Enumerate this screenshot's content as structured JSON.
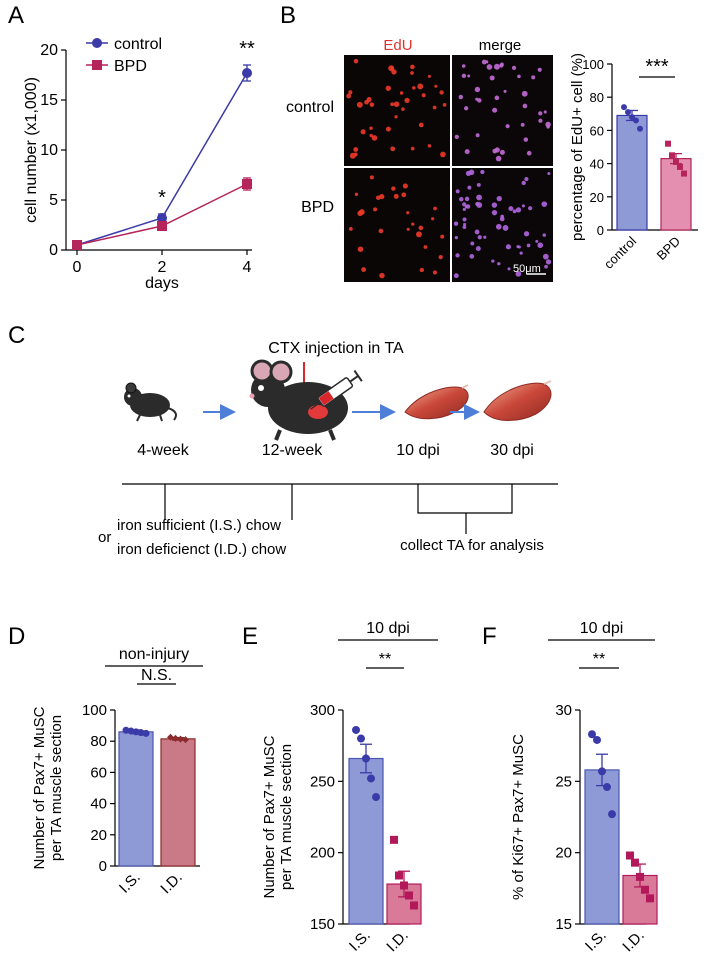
{
  "panel_labels": {
    "A": "A",
    "B": "B",
    "C": "C",
    "D": "D",
    "E": "E",
    "F": "F"
  },
  "colors": {
    "control": "#3a3aa8",
    "bpd": "#b5245a",
    "is_bar": "#8e9ad6",
    "is_dots": "#3a3aa8",
    "id_bar_d": "#c97a86",
    "id_dots_d": "#8b2b2b",
    "bpd_bar_b": "#e58fb0",
    "id_bar_ef": "#d87a98",
    "id_dots_ef": "#b3195a",
    "edu_red": "#e0332f",
    "arrow_blue": "#4d7fd8",
    "arrow_red": "#d9262a"
  },
  "panelB": {
    "col_edu": "EdU",
    "col_merge": "merge",
    "row_control": "control",
    "row_bpd": "BPD",
    "scale_bar": "50μm"
  },
  "panelC": {
    "injection": "CTX injection in TA",
    "t1": "4-week",
    "t2": "12-week",
    "t3": "10 dpi",
    "t4": "30 dpi",
    "chow_or": "or",
    "chow1": "iron sufficient (I.S.) chow",
    "chow2": "iron deficienct (I.D.) chow",
    "collect": "collect TA for analysis",
    "icons": [
      "young-mouse-icon",
      "adult-mouse-icon",
      "syringe-icon",
      "muscle-icon",
      "muscle-icon"
    ]
  },
  "chart_data": [
    {
      "id": "A",
      "type": "line",
      "x": [
        0,
        2,
        4
      ],
      "series": [
        {
          "name": "control",
          "values": [
            0.5,
            3.2,
            17.7
          ],
          "errors": [
            0.2,
            0.4,
            0.8
          ]
        },
        {
          "name": "BPD",
          "values": [
            0.5,
            2.4,
            6.6
          ],
          "errors": [
            0.2,
            0.4,
            0.6
          ]
        }
      ],
      "xlabel": "days",
      "ylabel": "cell number (x1,000)",
      "xlim": [
        0,
        4
      ],
      "ylim": [
        0,
        20
      ],
      "xticks": [
        "0",
        "2",
        "4"
      ],
      "yticks": [
        "0",
        "5",
        "10",
        "15",
        "20"
      ],
      "annotations": [
        {
          "x": 2,
          "text": "*"
        },
        {
          "x": 4,
          "text": "**"
        }
      ],
      "legend": "top-left"
    },
    {
      "id": "B",
      "type": "bar",
      "categories": [
        "control",
        "BPD"
      ],
      "values": [
        69,
        43
      ],
      "errors": [
        3,
        3
      ],
      "points": [
        [
          74,
          71,
          68,
          66,
          61
        ],
        [
          52,
          45,
          41,
          38,
          34
        ]
      ],
      "ylabel": "percentage of EdU+ cell (%)",
      "ylim": [
        0,
        100
      ],
      "yticks": [
        "0",
        "20",
        "40",
        "60",
        "80",
        "100"
      ],
      "significance": "***"
    },
    {
      "id": "D",
      "type": "bar",
      "title": "non-injury",
      "categories": [
        "I.S.",
        "I.D."
      ],
      "values": [
        86,
        81.5
      ],
      "errors": [
        1.2,
        0.8
      ],
      "points": [
        [
          87,
          86.5,
          86,
          85.5,
          85
        ],
        [
          82.5,
          81.8,
          81.3,
          81
        ]
      ],
      "ylabel": "Number of Pax7+ MuSC\nper TA muscle section",
      "ylim": [
        0,
        100
      ],
      "yticks": [
        "0",
        "20",
        "40",
        "60",
        "80",
        "100"
      ],
      "significance": "N.S."
    },
    {
      "id": "E",
      "type": "bar",
      "title": "10 dpi",
      "categories": [
        "I.S.",
        "I.D."
      ],
      "values": [
        266,
        178
      ],
      "errors": [
        10,
        9
      ],
      "points": [
        [
          286,
          280,
          266,
          252,
          239
        ],
        [
          209,
          184,
          177,
          170,
          163
        ]
      ],
      "ylabel": "Number of Pax7+ MuSC\nper TA muscle section",
      "ylim": [
        150,
        300
      ],
      "yticks": [
        "150",
        "200",
        "250",
        "300"
      ],
      "significance": "**"
    },
    {
      "id": "F",
      "type": "bar",
      "title": "10 dpi",
      "categories": [
        "I.S.",
        "I.D."
      ],
      "values": [
        25.8,
        18.4
      ],
      "errors": [
        1.1,
        0.8
      ],
      "points": [
        [
          28.3,
          27.9,
          25.7,
          24.6,
          22.7
        ],
        [
          19.8,
          19.3,
          18.3,
          17.4,
          16.8
        ]
      ],
      "ylabel": "% of Ki67+ Pax7+ MuSC",
      "ylim": [
        15,
        30
      ],
      "yticks": [
        "15",
        "20",
        "25",
        "30"
      ],
      "significance": "**"
    }
  ]
}
